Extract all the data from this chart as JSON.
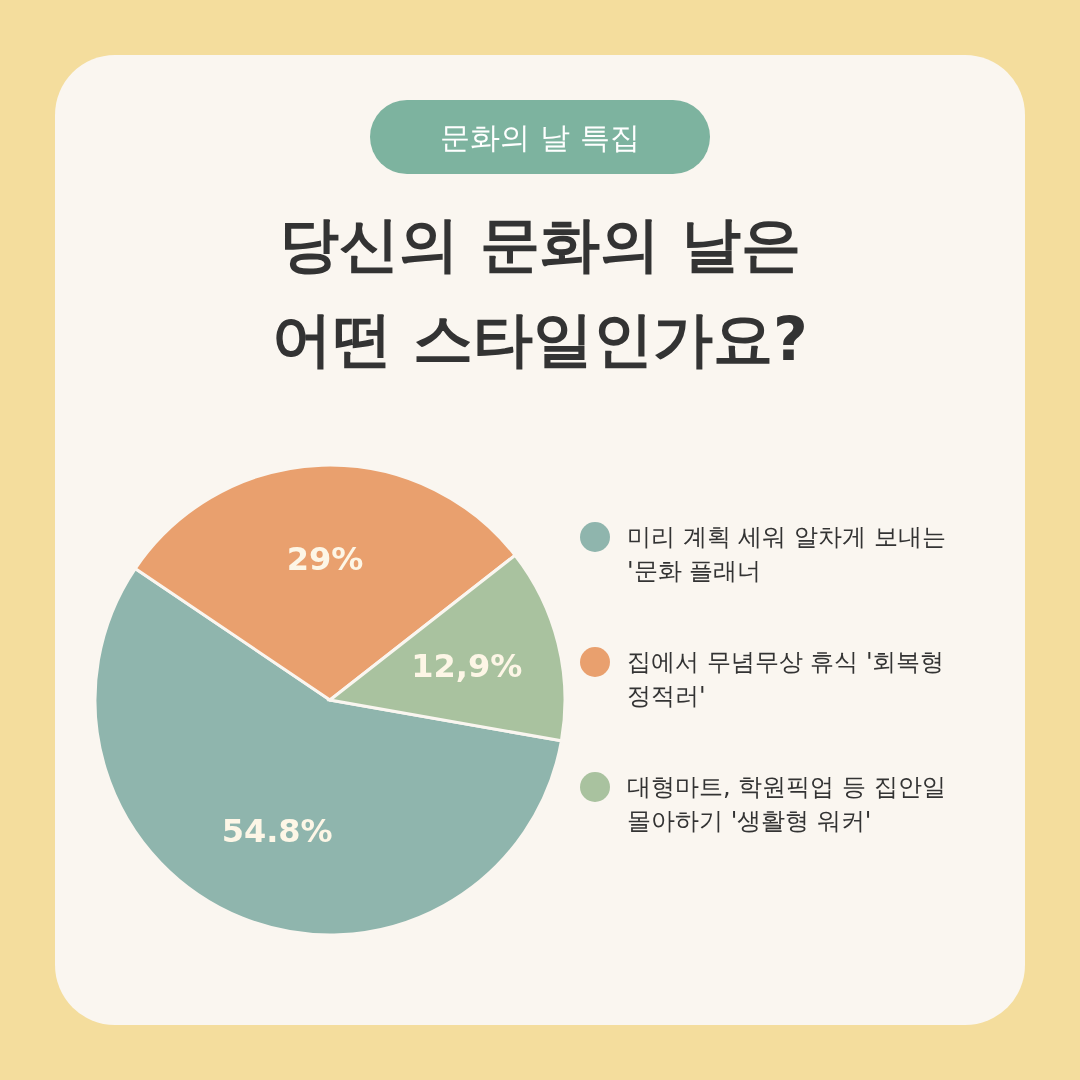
{
  "chart_data": {
    "type": "pie",
    "subtitle": "문화의 날 특집",
    "title": "당신의 문화의 날은 어떤 스타일인가요?",
    "categories": [
      "미리 계획 세워 알차게 보내는 '문화 플래너",
      "집에서 무념무상 휴식 '회복형 정적러'",
      "대형마트, 학원픽업 등 집안일 몰아하기 '생활형 워커'"
    ],
    "values": [
      54.8,
      29,
      12.9
    ],
    "value_labels": [
      "54.8%",
      "29%",
      "12,9%"
    ],
    "colors": [
      "#8fb5ad",
      "#e9a06e",
      "#a9c29f"
    ],
    "legend": "right"
  }
}
